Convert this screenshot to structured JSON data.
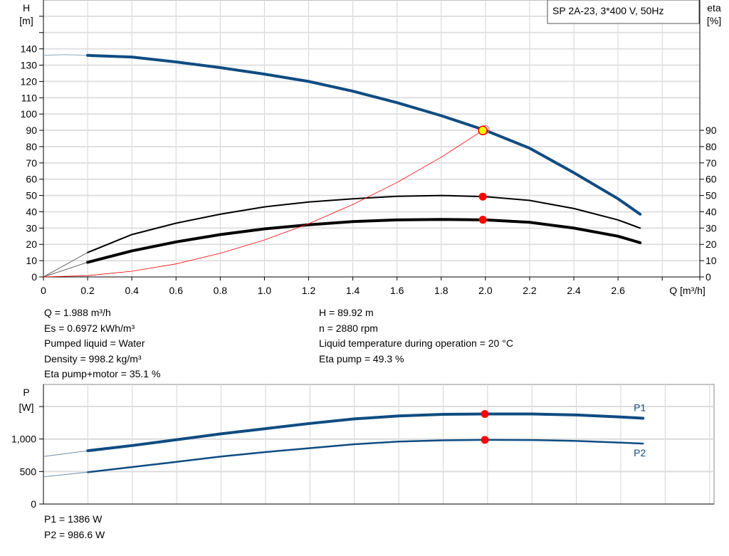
{
  "chart_data": [
    {
      "type": "line",
      "title_box": "SP 2A-23, 3*400 V, 50Hz",
      "xlabel": "Q [m³/h]",
      "ylabel_left": [
        "H",
        "[m]"
      ],
      "ylabel_right": [
        "eta",
        "[%]"
      ],
      "xlim": [
        0,
        2.97
      ],
      "ylim_left": [
        0,
        170
      ],
      "ylim_right": [
        0,
        170
      ],
      "grid": true,
      "x_ticks": [
        "0",
        "0.2",
        "0.4",
        "0.6",
        "0.8",
        "1.0",
        "1.2",
        "1.4",
        "1.6",
        "1.8",
        "2.0",
        "2.2",
        "2.4",
        "2.6"
      ],
      "y_ticks_left": [
        "0",
        "10",
        "20",
        "30",
        "40",
        "50",
        "60",
        "70",
        "80",
        "90",
        "100",
        "110",
        "120",
        "130",
        "140"
      ],
      "y_ticks_right": [
        "0",
        "10",
        "20",
        "30",
        "40",
        "50",
        "60",
        "70",
        "80",
        "90"
      ],
      "series": [
        {
          "key": "H",
          "color": "#0f4c81",
          "x": [
            0,
            0.1,
            0.2,
            0.4,
            0.6,
            0.8,
            1.0,
            1.2,
            1.4,
            1.6,
            1.8,
            2.0,
            2.2,
            2.4,
            2.6,
            2.7
          ],
          "y": [
            136,
            136.5,
            136,
            135,
            132,
            128.5,
            124.5,
            120,
            114,
            107,
            99,
            90,
            79,
            64,
            48,
            38.5
          ]
        },
        {
          "key": "eta_pump",
          "color": "#000000",
          "x": [
            0,
            0.2,
            0.4,
            0.6,
            0.8,
            1.0,
            1.2,
            1.4,
            1.6,
            1.8,
            2.0,
            2.2,
            2.4,
            2.6,
            2.7
          ],
          "y": [
            0,
            15,
            26,
            33,
            38.5,
            43,
            46,
            48,
            49.5,
            50,
            49.3,
            47,
            42,
            35,
            30
          ]
        },
        {
          "key": "eta_pump_motor",
          "color": "#000000",
          "x": [
            0,
            0.2,
            0.4,
            0.6,
            0.8,
            1.0,
            1.2,
            1.4,
            1.6,
            1.8,
            2.0,
            2.2,
            2.4,
            2.6,
            2.7
          ],
          "y": [
            0,
            9,
            16,
            21.5,
            26,
            29.5,
            32,
            34,
            35,
            35.3,
            35,
            33.5,
            30,
            25,
            21
          ]
        },
        {
          "key": "system",
          "color": "#ff0000",
          "x": [
            0,
            0.2,
            0.4,
            0.6,
            0.8,
            1.0,
            1.2,
            1.4,
            1.6,
            1.8,
            1.988
          ],
          "y": [
            0,
            0.8,
            3.5,
            8,
            14.5,
            22.7,
            32.7,
            44.5,
            58,
            73.5,
            89.92
          ]
        }
      ],
      "operating_point": {
        "Q": 1.988,
        "H": 89.92,
        "eta_pump": 49.3,
        "eta_pump_motor": 35.1,
        "color": "#ffff00"
      }
    },
    {
      "type": "line",
      "ylabel": [
        "P",
        "[W]"
      ],
      "xlim": [
        0,
        3.02
      ],
      "ylim": [
        0,
        1840
      ],
      "grid": true,
      "y_ticks": [
        "0",
        "500",
        "1,000"
      ],
      "series": [
        {
          "name": "P1",
          "color": "#0f4c81",
          "x": [
            0,
            0.2,
            0.4,
            0.6,
            0.8,
            1.0,
            1.2,
            1.4,
            1.6,
            1.8,
            1.988,
            2.2,
            2.4,
            2.6,
            2.7
          ],
          "y": [
            730,
            820,
            900,
            990,
            1080,
            1160,
            1240,
            1310,
            1355,
            1380,
            1386,
            1385,
            1370,
            1340,
            1320
          ]
        },
        {
          "name": "P2",
          "color": "#0f4c81",
          "x": [
            0,
            0.2,
            0.4,
            0.6,
            0.8,
            1.0,
            1.2,
            1.4,
            1.6,
            1.8,
            1.988,
            2.2,
            2.4,
            2.6,
            2.7
          ],
          "y": [
            420,
            490,
            570,
            650,
            730,
            800,
            860,
            920,
            960,
            980,
            986.6,
            985,
            970,
            945,
            930
          ]
        }
      ],
      "operating_point": {
        "Q": 1.988,
        "P1": 1386,
        "P2": 986.6
      }
    }
  ],
  "info_left": [
    "Q = 1.988 m³/h",
    "Es = 0.6972 kWh/m³",
    "Pumped liquid = Water",
    "Density = 998.2 kg/m³",
    "Eta pump+motor = 35.1 %"
  ],
  "info_right": [
    "H = 89.92 m",
    "n = 2880 rpm",
    "Liquid temperature during operation = 20 °C",
    "Eta pump = 49.3 %"
  ],
  "power_info": [
    "P1 = 1386 W",
    "P2 = 986.6 W"
  ]
}
